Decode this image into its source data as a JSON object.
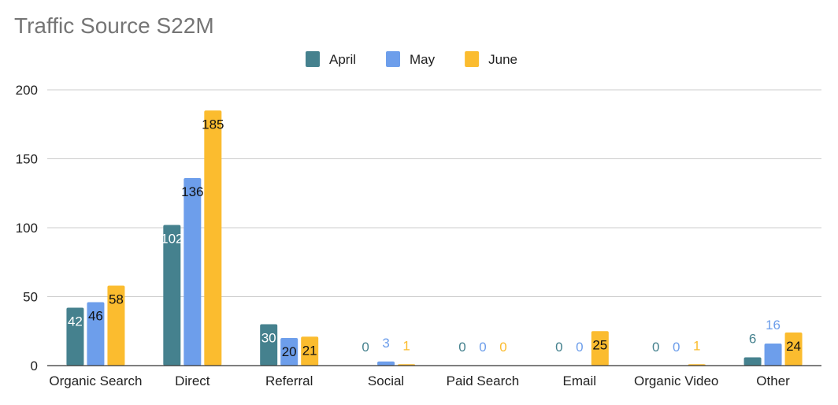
{
  "chart_data": {
    "type": "bar",
    "title": "Traffic Source S22M",
    "categories": [
      "Organic Search",
      "Direct",
      "Referral",
      "Social",
      "Paid Search",
      "Email",
      "Organic Video",
      "Other"
    ],
    "series": [
      {
        "name": "April",
        "color": "#45818e",
        "values": [
          42,
          102,
          30,
          0,
          0,
          0,
          0,
          6
        ]
      },
      {
        "name": "May",
        "color": "#6d9eeb",
        "values": [
          46,
          136,
          20,
          3,
          0,
          0,
          0,
          16
        ]
      },
      {
        "name": "June",
        "color": "#fbbc2f",
        "values": [
          58,
          185,
          21,
          1,
          0,
          25,
          1,
          24
        ]
      }
    ],
    "ylim": [
      0,
      200
    ],
    "yticks": [
      0,
      50,
      100,
      150,
      200
    ],
    "grid": true,
    "legend_position": "top-center",
    "data_labels": true
  }
}
